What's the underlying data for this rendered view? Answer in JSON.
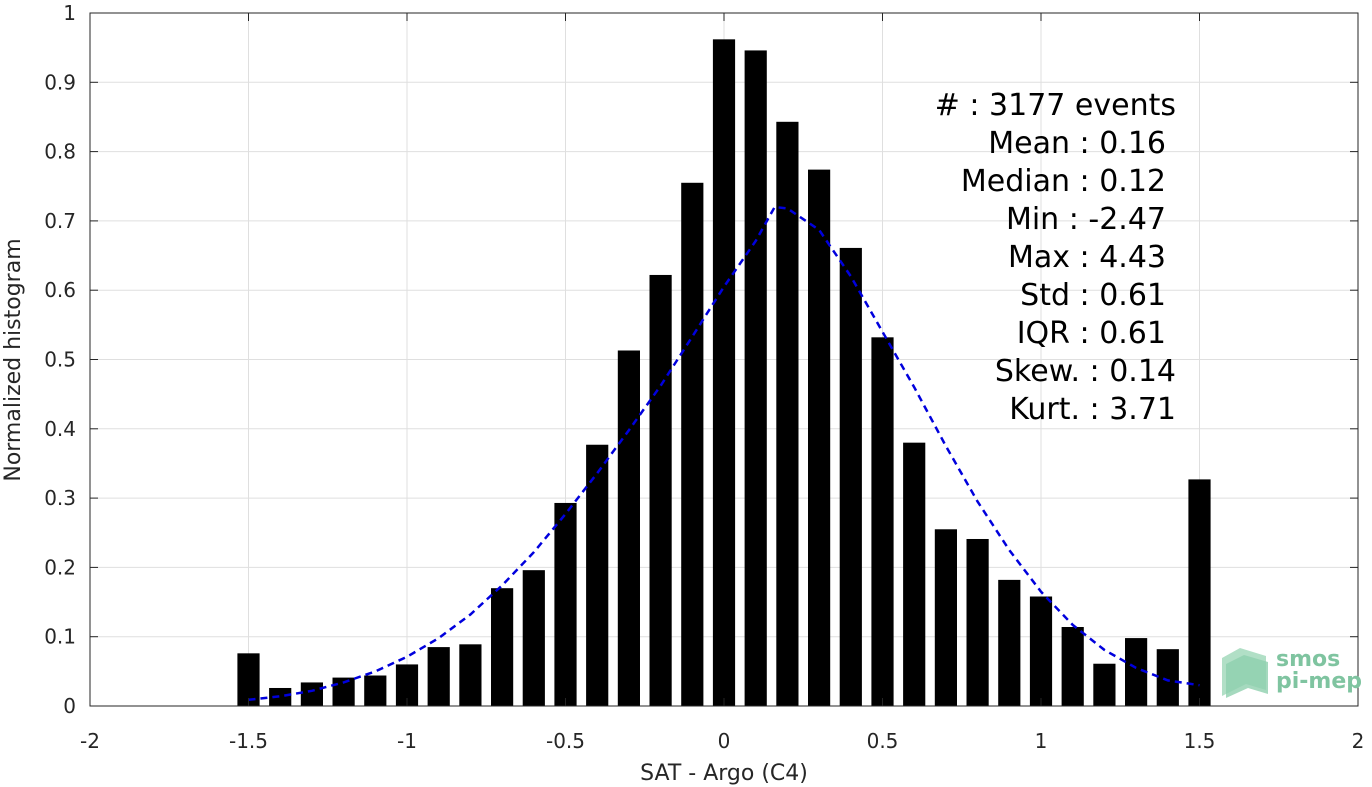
{
  "chart_data": {
    "type": "bar",
    "xlabel": "SAT - Argo (C4)",
    "ylabel": "Normalized histogram",
    "xlim": [
      -2,
      2
    ],
    "ylim": [
      0,
      1
    ],
    "xticks": [
      -2,
      -1.5,
      -1,
      -0.5,
      0,
      0.5,
      1,
      1.5,
      2
    ],
    "xtick_labels": [
      "-2",
      "-1.5",
      "-1",
      "-0.5",
      "0",
      "0.5",
      "1",
      "1.5",
      "2"
    ],
    "yticks": [
      0,
      0.1,
      0.2,
      0.3,
      0.4,
      0.5,
      0.6,
      0.7,
      0.8,
      0.9,
      1
    ],
    "ytick_labels": [
      "0",
      "0.1",
      "0.2",
      "0.3",
      "0.4",
      "0.5",
      "0.6",
      "0.7",
      "0.8",
      "0.9",
      "1"
    ],
    "grid": true,
    "bar_color": "#000000",
    "bars": {
      "x": [
        -1.5,
        -1.4,
        -1.3,
        -1.2,
        -1.1,
        -1.0,
        -0.9,
        -0.8,
        -0.7,
        -0.6,
        -0.5,
        -0.4,
        -0.3,
        -0.2,
        -0.1,
        0.0,
        0.1,
        0.2,
        0.3,
        0.4,
        0.5,
        0.6,
        0.7,
        0.8,
        0.9,
        1.0,
        1.1,
        1.2,
        1.3,
        1.4,
        1.5
      ],
      "values": [
        0.076,
        0.026,
        0.034,
        0.041,
        0.044,
        0.06,
        0.085,
        0.089,
        0.17,
        0.196,
        0.293,
        0.377,
        0.513,
        0.622,
        0.755,
        0.962,
        0.946,
        0.843,
        0.774,
        0.661,
        0.532,
        0.38,
        0.255,
        0.241,
        0.182,
        0.158,
        0.114,
        0.061,
        0.098,
        0.082,
        0.327
      ],
      "width": 0.07
    },
    "fit_curve": {
      "style": "dashed",
      "color": "#0000dd",
      "x": [
        -1.5,
        -1.4,
        -1.3,
        -1.2,
        -1.1,
        -1.0,
        -0.9,
        -0.8,
        -0.7,
        -0.6,
        -0.5,
        -0.4,
        -0.3,
        -0.2,
        -0.1,
        0.0,
        0.1,
        0.16,
        0.2,
        0.3,
        0.4,
        0.5,
        0.6,
        0.7,
        0.8,
        0.9,
        1.0,
        1.1,
        1.2,
        1.3,
        1.4,
        1.5
      ],
      "y": [
        0.009,
        0.014,
        0.022,
        0.034,
        0.05,
        0.071,
        0.098,
        0.132,
        0.174,
        0.222,
        0.277,
        0.336,
        0.398,
        0.462,
        0.533,
        0.605,
        0.671,
        0.72,
        0.718,
        0.687,
        0.62,
        0.54,
        0.46,
        0.375,
        0.295,
        0.225,
        0.165,
        0.117,
        0.081,
        0.055,
        0.037,
        0.03
      ]
    },
    "annotations": [
      {
        "label": "#",
        "value": ": 3177 events"
      },
      {
        "label": "Mean",
        "value": ": 0.16"
      },
      {
        "label": "Median",
        "value": ": 0.12"
      },
      {
        "label": "Min",
        "value": ": -2.47"
      },
      {
        "label": "Max",
        "value": ": 4.43"
      },
      {
        "label": "Std",
        "value": ": 0.61"
      },
      {
        "label": "IQR",
        "value": ": 0.61"
      },
      {
        "label": "Skew.",
        "value": ": 0.14"
      },
      {
        "label": "Kurt.",
        "value": ": 3.71"
      }
    ]
  },
  "logo": {
    "line1": "smos",
    "line2": "pi-mep",
    "color": "#7fc4a0"
  }
}
